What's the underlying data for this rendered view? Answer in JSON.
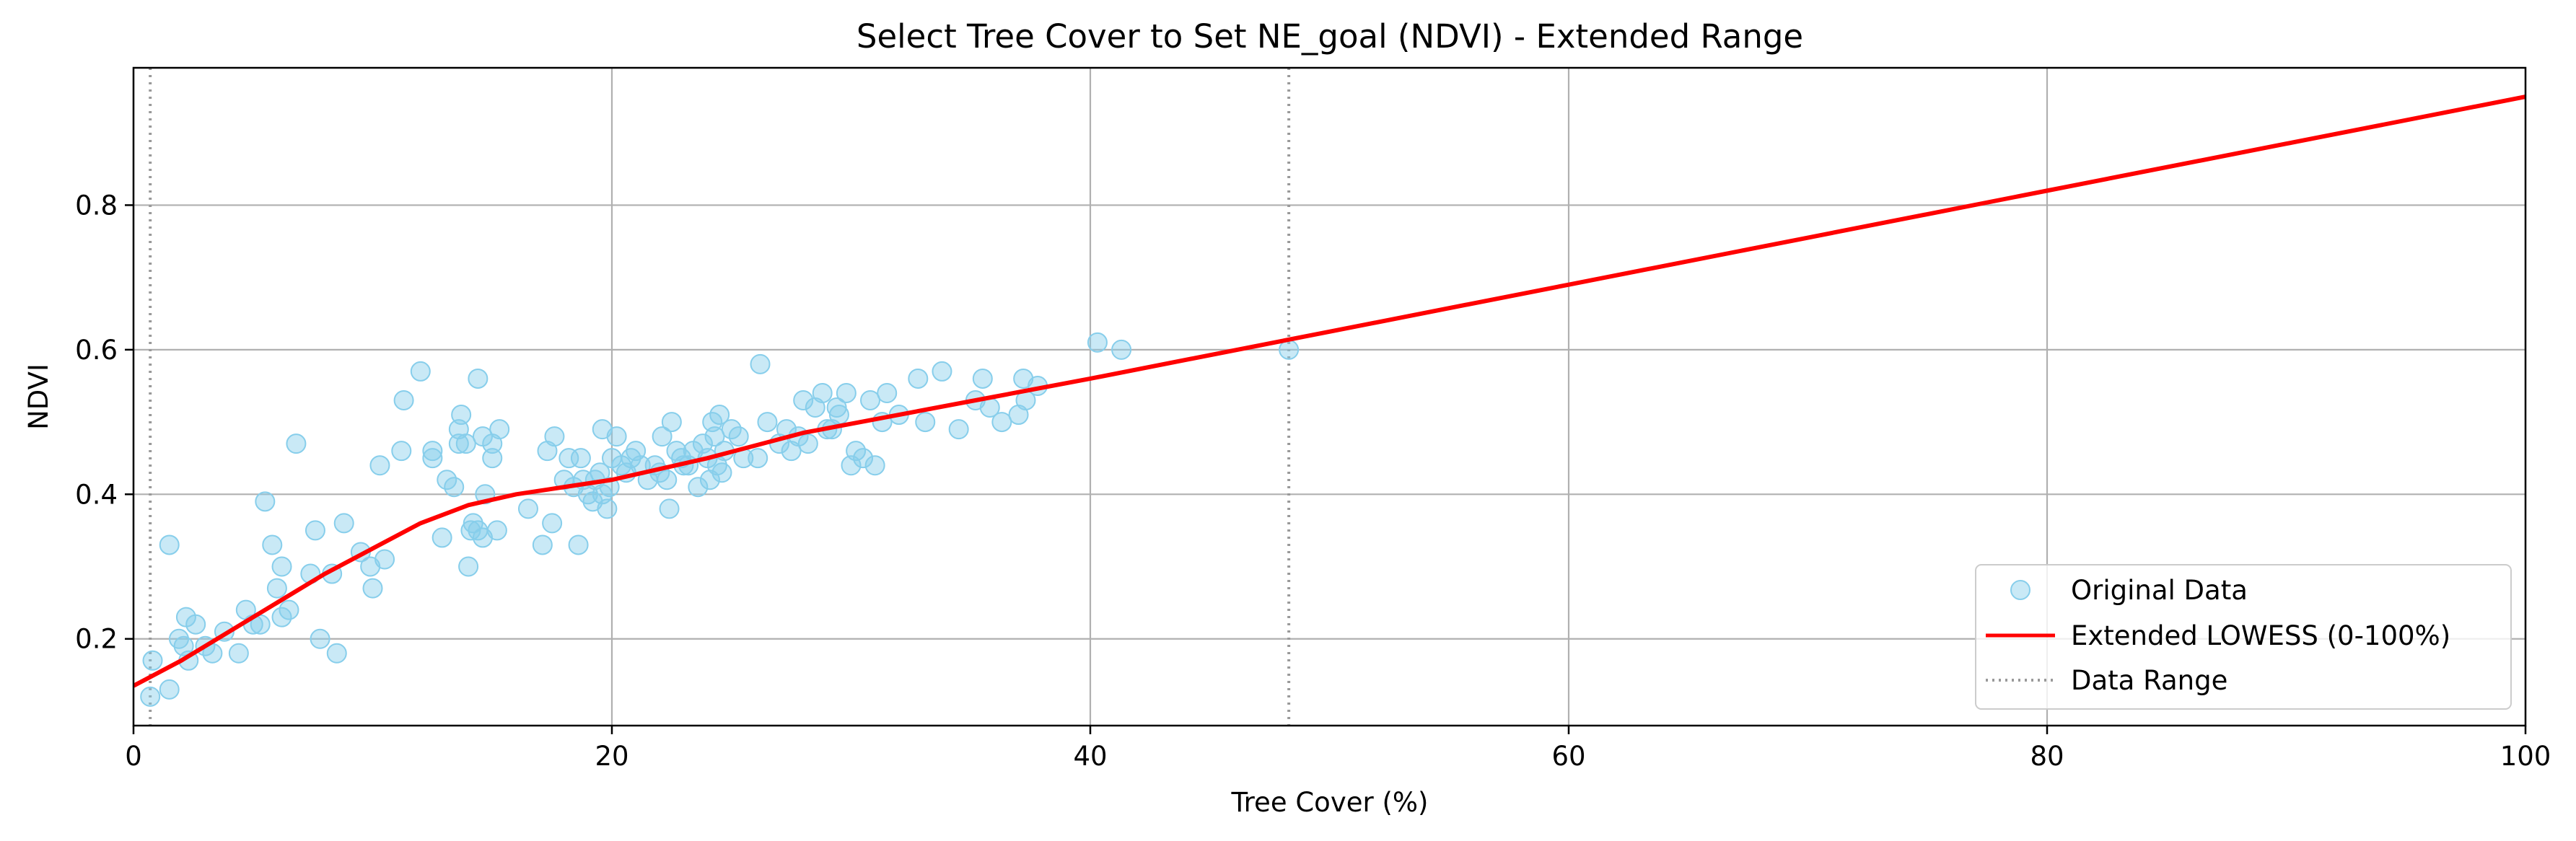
{
  "chart_data": {
    "type": "scatter",
    "title": "Select Tree Cover to Set NE_goal (NDVI) - Extended Range",
    "xlabel": "Tree Cover (%)",
    "ylabel": "NDVI",
    "xlim": [
      0,
      100
    ],
    "ylim": [
      0.08,
      0.99
    ],
    "x_ticks": [
      0,
      20,
      40,
      60,
      80,
      100
    ],
    "y_ticks": [
      0.2,
      0.4,
      0.6,
      0.8
    ],
    "x_tick_labels": [
      "0",
      "20",
      "40",
      "60",
      "80",
      "100"
    ],
    "y_tick_labels": [
      "0.2",
      "0.4",
      "0.6",
      "0.8"
    ],
    "grid": true,
    "legend_position": "lower-right",
    "colors": {
      "scatter_fill": "#87ceeb",
      "lowess": "#ff0000",
      "range_line": "#999999"
    },
    "series": [
      {
        "name": "Original Data",
        "type": "scatter",
        "points": [
          [
            0.7,
            0.12
          ],
          [
            0.8,
            0.17
          ],
          [
            1.5,
            0.13
          ],
          [
            1.5,
            0.33
          ],
          [
            1.9,
            0.2
          ],
          [
            2.1,
            0.19
          ],
          [
            2.2,
            0.23
          ],
          [
            2.3,
            0.17
          ],
          [
            2.6,
            0.22
          ],
          [
            3.0,
            0.19
          ],
          [
            3.3,
            0.18
          ],
          [
            3.8,
            0.21
          ],
          [
            4.4,
            0.18
          ],
          [
            4.7,
            0.24
          ],
          [
            5.0,
            0.22
          ],
          [
            5.3,
            0.22
          ],
          [
            5.5,
            0.39
          ],
          [
            5.8,
            0.33
          ],
          [
            6.0,
            0.27
          ],
          [
            6.2,
            0.23
          ],
          [
            6.2,
            0.3
          ],
          [
            6.5,
            0.24
          ],
          [
            6.8,
            0.47
          ],
          [
            7.4,
            0.29
          ],
          [
            7.6,
            0.35
          ],
          [
            7.8,
            0.2
          ],
          [
            8.3,
            0.29
          ],
          [
            8.5,
            0.18
          ],
          [
            8.8,
            0.36
          ],
          [
            9.5,
            0.32
          ],
          [
            9.9,
            0.3
          ],
          [
            10.0,
            0.27
          ],
          [
            10.3,
            0.44
          ],
          [
            10.5,
            0.31
          ],
          [
            11.2,
            0.46
          ],
          [
            11.3,
            0.53
          ],
          [
            12.0,
            0.57
          ],
          [
            12.5,
            0.45
          ],
          [
            12.5,
            0.46
          ],
          [
            12.9,
            0.34
          ],
          [
            13.1,
            0.42
          ],
          [
            13.4,
            0.41
          ],
          [
            13.6,
            0.49
          ],
          [
            13.6,
            0.47
          ],
          [
            13.7,
            0.51
          ],
          [
            13.9,
            0.47
          ],
          [
            14.0,
            0.3
          ],
          [
            14.1,
            0.35
          ],
          [
            14.2,
            0.36
          ],
          [
            14.4,
            0.35
          ],
          [
            14.4,
            0.56
          ],
          [
            14.6,
            0.34
          ],
          [
            14.6,
            0.48
          ],
          [
            14.7,
            0.4
          ],
          [
            15.0,
            0.47
          ],
          [
            15.0,
            0.45
          ],
          [
            15.2,
            0.35
          ],
          [
            15.3,
            0.49
          ],
          [
            16.5,
            0.38
          ],
          [
            17.1,
            0.33
          ],
          [
            17.3,
            0.46
          ],
          [
            17.5,
            0.36
          ],
          [
            17.6,
            0.48
          ],
          [
            18.0,
            0.42
          ],
          [
            18.2,
            0.45
          ],
          [
            18.4,
            0.41
          ],
          [
            18.6,
            0.33
          ],
          [
            18.7,
            0.45
          ],
          [
            18.8,
            0.42
          ],
          [
            19.0,
            0.4
          ],
          [
            19.2,
            0.39
          ],
          [
            19.3,
            0.42
          ],
          [
            19.5,
            0.43
          ],
          [
            19.6,
            0.4
          ],
          [
            19.6,
            0.49
          ],
          [
            19.8,
            0.38
          ],
          [
            19.9,
            0.41
          ],
          [
            20.0,
            0.45
          ],
          [
            20.2,
            0.48
          ],
          [
            20.4,
            0.44
          ],
          [
            20.6,
            0.43
          ],
          [
            20.8,
            0.45
          ],
          [
            21.0,
            0.46
          ],
          [
            21.2,
            0.44
          ],
          [
            21.5,
            0.42
          ],
          [
            21.8,
            0.44
          ],
          [
            22.0,
            0.43
          ],
          [
            22.1,
            0.48
          ],
          [
            22.3,
            0.42
          ],
          [
            22.4,
            0.38
          ],
          [
            22.5,
            0.5
          ],
          [
            22.7,
            0.46
          ],
          [
            22.9,
            0.45
          ],
          [
            23.0,
            0.44
          ],
          [
            23.2,
            0.44
          ],
          [
            23.4,
            0.46
          ],
          [
            23.6,
            0.41
          ],
          [
            23.8,
            0.47
          ],
          [
            24.0,
            0.45
          ],
          [
            24.1,
            0.42
          ],
          [
            24.2,
            0.5
          ],
          [
            24.3,
            0.48
          ],
          [
            24.4,
            0.44
          ],
          [
            24.5,
            0.51
          ],
          [
            24.6,
            0.43
          ],
          [
            24.7,
            0.46
          ],
          [
            25.0,
            0.49
          ],
          [
            25.3,
            0.48
          ],
          [
            25.5,
            0.45
          ],
          [
            26.1,
            0.45
          ],
          [
            26.2,
            0.58
          ],
          [
            26.5,
            0.5
          ],
          [
            27.0,
            0.47
          ],
          [
            27.3,
            0.49
          ],
          [
            27.5,
            0.46
          ],
          [
            27.8,
            0.48
          ],
          [
            28.0,
            0.53
          ],
          [
            28.2,
            0.47
          ],
          [
            28.5,
            0.52
          ],
          [
            28.8,
            0.54
          ],
          [
            29.0,
            0.49
          ],
          [
            29.2,
            0.49
          ],
          [
            29.4,
            0.52
          ],
          [
            29.5,
            0.51
          ],
          [
            29.8,
            0.54
          ],
          [
            30.0,
            0.44
          ],
          [
            30.2,
            0.46
          ],
          [
            30.5,
            0.45
          ],
          [
            30.8,
            0.53
          ],
          [
            31.0,
            0.44
          ],
          [
            31.3,
            0.5
          ],
          [
            31.5,
            0.54
          ],
          [
            32.0,
            0.51
          ],
          [
            32.8,
            0.56
          ],
          [
            33.1,
            0.5
          ],
          [
            33.8,
            0.57
          ],
          [
            34.5,
            0.49
          ],
          [
            35.2,
            0.53
          ],
          [
            35.5,
            0.56
          ],
          [
            35.8,
            0.52
          ],
          [
            36.3,
            0.5
          ],
          [
            37.0,
            0.51
          ],
          [
            37.2,
            0.56
          ],
          [
            37.3,
            0.53
          ],
          [
            37.8,
            0.55
          ],
          [
            40.3,
            0.61
          ],
          [
            41.3,
            0.6
          ],
          [
            48.3,
            0.6
          ]
        ]
      },
      {
        "name": "Extended LOWESS (0-100%)",
        "type": "line",
        "x": [
          0,
          2,
          4,
          6,
          8,
          10,
          12,
          14,
          16,
          18,
          20,
          24,
          28,
          32,
          36,
          40,
          50,
          60,
          70,
          80,
          90,
          100
        ],
        "y": [
          0.135,
          0.17,
          0.21,
          0.25,
          0.29,
          0.325,
          0.36,
          0.385,
          0.4,
          0.41,
          0.42,
          0.45,
          0.485,
          0.51,
          0.535,
          0.56,
          0.625,
          0.69,
          0.755,
          0.82,
          0.885,
          0.95
        ]
      },
      {
        "name": "Data Range",
        "type": "vline",
        "x": [
          0.7,
          48.3
        ]
      }
    ]
  }
}
